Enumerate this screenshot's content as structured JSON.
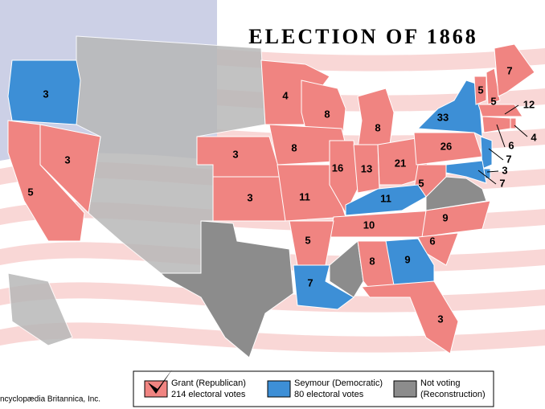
{
  "title": "ELECTION OF 1868",
  "credit": "ncyclopædia Britannica, Inc.",
  "legend": [
    {
      "label": "Grant (Republican)",
      "detail": "214 electoral votes"
    },
    {
      "label": "Seymour (Democratic)",
      "detail": "80 electoral votes"
    },
    {
      "label": "Not voting",
      "detail": "(Reconstruction)"
    }
  ],
  "states": [
    {
      "votes": "3",
      "color": "#3d8fd6"
    },
    {
      "votes": "5",
      "color": "#f08481"
    },
    {
      "votes": "3",
      "color": "#f08481"
    },
    {
      "votes": "4",
      "color": "#f08481"
    },
    {
      "votes": "8",
      "color": "#f08481"
    },
    {
      "votes": "8",
      "color": "#f08481"
    },
    {
      "votes": "8",
      "color": "#f08481"
    },
    {
      "votes": "3",
      "color": "#f08481"
    },
    {
      "votes": "3",
      "color": "#f08481"
    },
    {
      "votes": "11",
      "color": "#f08481"
    },
    {
      "votes": "16",
      "color": "#f08481"
    },
    {
      "votes": "13",
      "color": "#f08481"
    },
    {
      "votes": "21",
      "color": "#f08481"
    },
    {
      "votes": "26",
      "color": "#f08481"
    },
    {
      "votes": "33",
      "color": "#3d8fd6"
    },
    {
      "votes": "5",
      "color": "#f08481"
    },
    {
      "votes": "5",
      "color": "#f08481"
    },
    {
      "votes": "7",
      "color": "#f08481"
    },
    {
      "votes": "12",
      "color": "#f08481"
    },
    {
      "votes": "4",
      "color": "#f08481"
    },
    {
      "votes": "6",
      "color": "#f08481"
    },
    {
      "votes": "7",
      "color": "#3d8fd6"
    },
    {
      "votes": "3",
      "color": "#3d8fd6"
    },
    {
      "votes": "7",
      "color": "#3d8fd6"
    },
    {
      "votes": "5",
      "color": "#f08481"
    },
    {
      "votes": "11",
      "color": "#3d8fd6"
    },
    {
      "votes": "10",
      "color": "#f08481"
    },
    {
      "votes": "9",
      "color": "#f08481"
    },
    {
      "votes": "6",
      "color": "#f08481"
    },
    {
      "votes": "9",
      "color": "#3d8fd6"
    },
    {
      "votes": "8",
      "color": "#f08481"
    },
    {
      "votes": "5",
      "color": "#f08481"
    },
    {
      "votes": "7",
      "color": "#3d8fd6"
    },
    {
      "votes": "3",
      "color": "#f08481"
    }
  ]
}
